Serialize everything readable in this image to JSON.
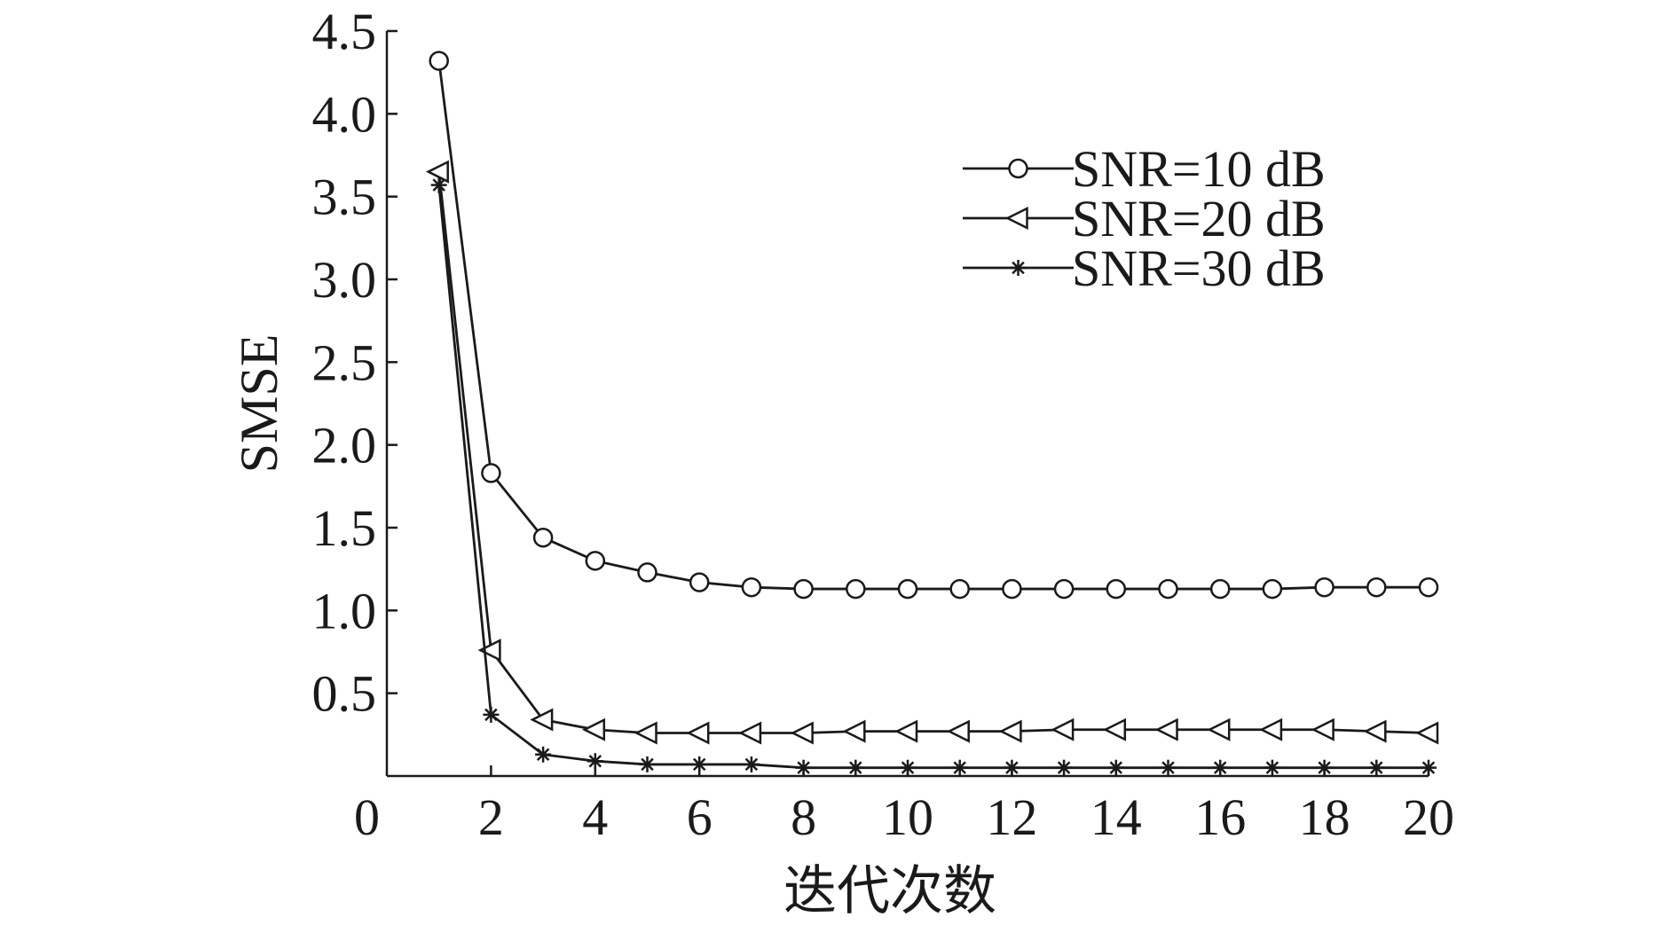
{
  "chart_data": {
    "type": "line",
    "title": "",
    "xlabel": "迭代次数",
    "ylabel": "SMSE",
    "xlim": [
      0,
      20
    ],
    "ylim": [
      0,
      4.5
    ],
    "xticks": [
      0,
      2,
      4,
      6,
      8,
      10,
      12,
      14,
      16,
      18,
      20
    ],
    "xtick_labels": [
      "0",
      "2",
      "4",
      "6",
      "8",
      "10",
      "12",
      "14",
      "16",
      "18",
      "20"
    ],
    "yticks": [
      0.5,
      1.0,
      1.5,
      2.0,
      2.5,
      3.0,
      3.5,
      4.0,
      4.5
    ],
    "ytick_labels": [
      "0.5",
      "1.0",
      "1.5",
      "2.0",
      "2.5",
      "3.0",
      "3.5",
      "4.0",
      "4.5"
    ],
    "grid": false,
    "legend_position": "top-right",
    "line_color": "#1a1a1a",
    "series": [
      {
        "name": "SNR=10 dB",
        "marker": "circle",
        "x": [
          1,
          2,
          3,
          4,
          5,
          6,
          7,
          8,
          9,
          10,
          11,
          12,
          13,
          14,
          15,
          16,
          17,
          18,
          19,
          20
        ],
        "values": [
          4.32,
          1.83,
          1.44,
          1.3,
          1.23,
          1.17,
          1.14,
          1.13,
          1.13,
          1.13,
          1.13,
          1.13,
          1.13,
          1.13,
          1.13,
          1.13,
          1.13,
          1.14,
          1.14,
          1.14
        ]
      },
      {
        "name": "SNR=20 dB",
        "marker": "triangle-left",
        "x": [
          1,
          2,
          3,
          4,
          5,
          6,
          7,
          8,
          9,
          10,
          11,
          12,
          13,
          14,
          15,
          16,
          17,
          18,
          19,
          20
        ],
        "values": [
          3.65,
          0.76,
          0.34,
          0.28,
          0.26,
          0.26,
          0.26,
          0.26,
          0.27,
          0.27,
          0.27,
          0.27,
          0.28,
          0.28,
          0.28,
          0.28,
          0.28,
          0.28,
          0.27,
          0.26
        ]
      },
      {
        "name": "SNR=30 dB",
        "marker": "asterisk",
        "x": [
          1,
          2,
          3,
          4,
          5,
          6,
          7,
          8,
          9,
          10,
          11,
          12,
          13,
          14,
          15,
          16,
          17,
          18,
          19,
          20
        ],
        "values": [
          3.57,
          0.37,
          0.13,
          0.09,
          0.07,
          0.07,
          0.07,
          0.05,
          0.05,
          0.05,
          0.05,
          0.05,
          0.05,
          0.05,
          0.05,
          0.05,
          0.05,
          0.05,
          0.05,
          0.05
        ]
      }
    ]
  }
}
